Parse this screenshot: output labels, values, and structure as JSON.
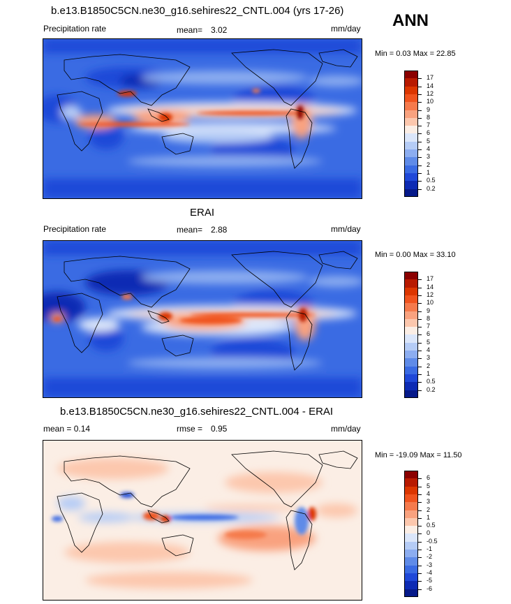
{
  "season": "ANN",
  "panels": [
    {
      "title": "b.e13.B1850C5CN.ne30_g16.sehires22_CNTL.004 (yrs 17-26)",
      "left_label": "Precipitation rate",
      "center_label": "mean=",
      "center_value": "3.02",
      "units": "mm/day",
      "minmax": "Min =   0.03 Max =  22.85",
      "colorbar": {
        "labels": [
          "17",
          "14",
          "12",
          "10",
          "9",
          "8",
          "7",
          "6",
          "5",
          "4",
          "3",
          "2",
          "1",
          "0.5",
          "0.2"
        ],
        "colors": [
          "#8b0000",
          "#b81a00",
          "#dc3600",
          "#f0531e",
          "#f57a4c",
          "#f9a27f",
          "#fcc7ad",
          "#fbeee5",
          "#dbe6fa",
          "#b5ccf6",
          "#8cadf0",
          "#5f8be8",
          "#3a6be3",
          "#1f48d8",
          "#0d2bb4",
          "#061a8a"
        ]
      }
    },
    {
      "title": "ERAI",
      "left_label": "Precipitation rate",
      "center_label": "mean=",
      "center_value": "2.88",
      "units": "mm/day",
      "minmax": "Min =   0.00 Max =  33.10",
      "colorbar": {
        "labels": [
          "17",
          "14",
          "12",
          "10",
          "9",
          "8",
          "7",
          "6",
          "5",
          "4",
          "3",
          "2",
          "1",
          "0.5",
          "0.2"
        ],
        "colors": [
          "#8b0000",
          "#b81a00",
          "#dc3600",
          "#f0531e",
          "#f57a4c",
          "#f9a27f",
          "#fcc7ad",
          "#fbeee5",
          "#dbe6fa",
          "#b5ccf6",
          "#8cadf0",
          "#5f8be8",
          "#3a6be3",
          "#1f48d8",
          "#0d2bb4",
          "#061a8a"
        ]
      }
    },
    {
      "title": "b.e13.B1850C5CN.ne30_g16.sehires22_CNTL.004 - ERAI",
      "left_label": "mean =   0.14",
      "center_label": "rmse =",
      "center_value": "0.95",
      "units": "mm/day",
      "minmax": "Min = -19.09 Max =  11.50",
      "colorbar": {
        "labels": [
          "6",
          "5",
          "4",
          "3",
          "2",
          "1",
          "0.5",
          "0",
          "-0.5",
          "-1",
          "-2",
          "-3",
          "-4",
          "-5",
          "-6"
        ],
        "colors": [
          "#8b0000",
          "#b81a00",
          "#dc3600",
          "#f0531e",
          "#f57a4c",
          "#f9a27f",
          "#fcc7ad",
          "#fbeee5",
          "#dbe6fa",
          "#b5ccf6",
          "#8cadf0",
          "#5f8be8",
          "#3a6be3",
          "#1f48d8",
          "#0d2bb4",
          "#061a8a"
        ]
      }
    }
  ],
  "chart_data": [
    {
      "type": "heatmap",
      "title": "b.e13.B1850C5CN.ne30_g16.sehires22_CNTL.004 (yrs 17-26)",
      "variable": "Precipitation rate",
      "units": "mm/day",
      "mean": 3.02,
      "min": 0.03,
      "max": 22.85,
      "levels": [
        0.2,
        0.5,
        1,
        2,
        3,
        4,
        5,
        6,
        7,
        8,
        9,
        10,
        12,
        14,
        17
      ],
      "projection": "global lat-lon",
      "season": "ANN"
    },
    {
      "type": "heatmap",
      "title": "ERAI",
      "variable": "Precipitation rate",
      "units": "mm/day",
      "mean": 2.88,
      "min": 0.0,
      "max": 33.1,
      "levels": [
        0.2,
        0.5,
        1,
        2,
        3,
        4,
        5,
        6,
        7,
        8,
        9,
        10,
        12,
        14,
        17
      ],
      "projection": "global lat-lon",
      "season": "ANN"
    },
    {
      "type": "heatmap",
      "title": "b.e13.B1850C5CN.ne30_g16.sehires22_CNTL.004 - ERAI",
      "units": "mm/day",
      "mean": 0.14,
      "rmse": 0.95,
      "min": -19.09,
      "max": 11.5,
      "levels": [
        -6,
        -5,
        -4,
        -3,
        -2,
        -1,
        -0.5,
        0,
        0.5,
        1,
        2,
        3,
        4,
        5,
        6
      ],
      "projection": "global lat-lon",
      "season": "ANN"
    }
  ]
}
